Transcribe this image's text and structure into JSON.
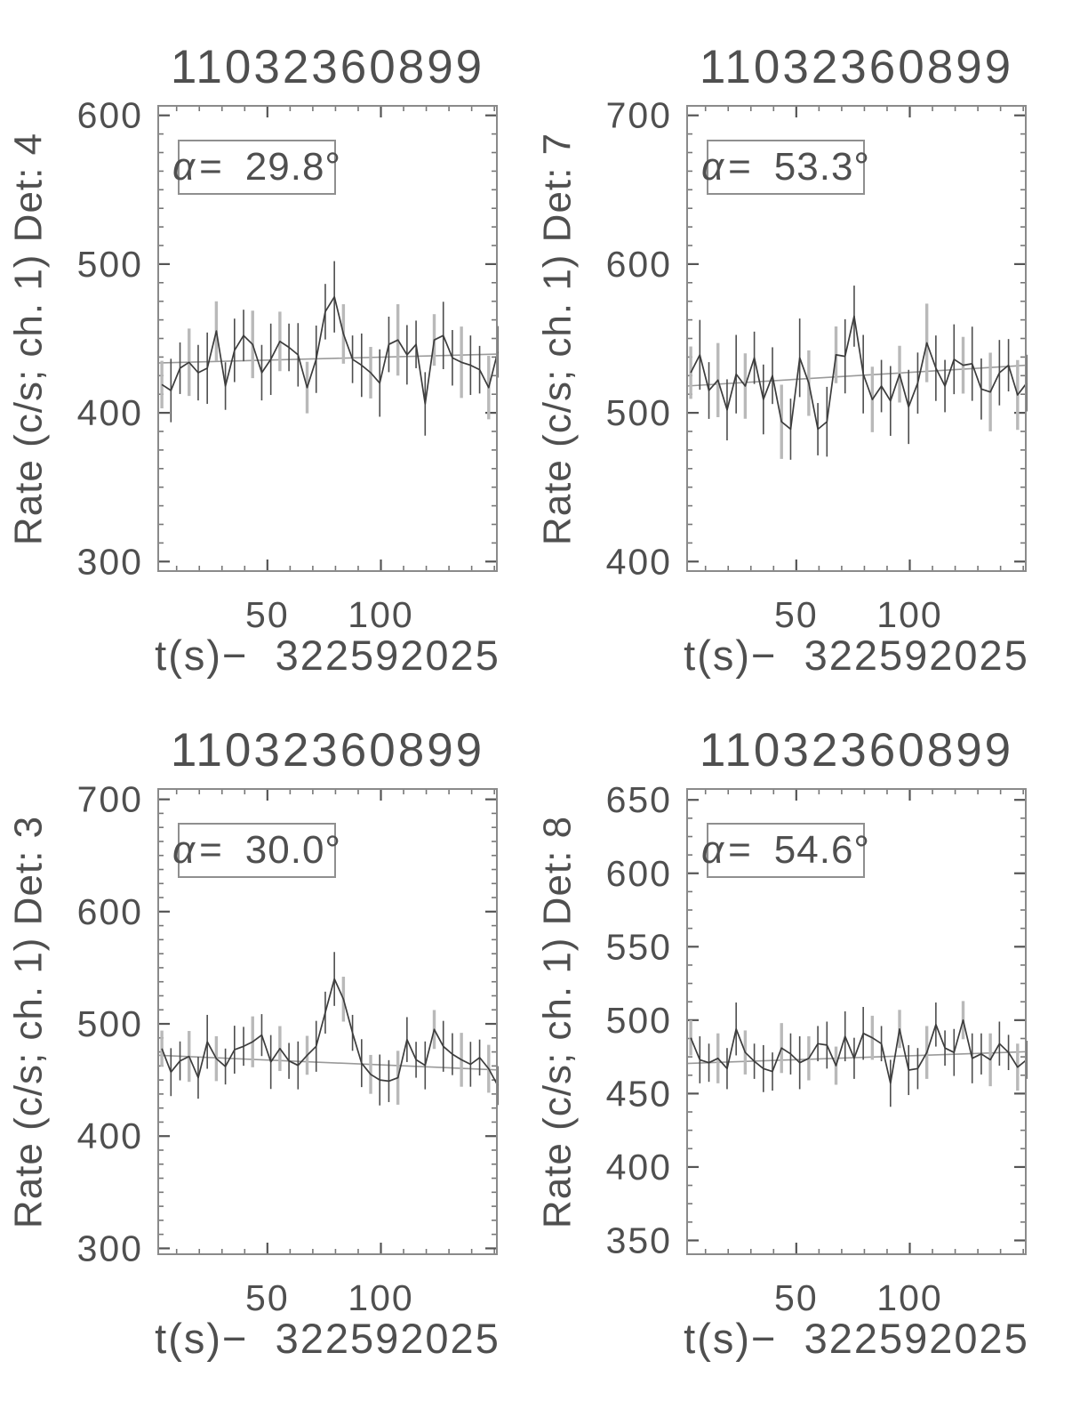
{
  "colors": {
    "background": "#ffffff",
    "text": "#4f4f4f",
    "frame": "#8a8a8a",
    "tick_major": "#555555",
    "tick_minor": "#777777",
    "data_line": "#3c3c3c",
    "trend_line": "#9a9a9a",
    "err_dark": "#4d4d4d",
    "err_gray": "#b9b9b9",
    "box_border": "#8f8f8f"
  },
  "chart_data": [
    {
      "type": "line",
      "title": "11032360899",
      "ylabel": "Rate (c/s; ch. 1) Det: 4",
      "xlabel": "t(s)−  322592025",
      "alpha_symbol": "α",
      "alpha_equals": "=",
      "alpha_value": "29.8°",
      "detector": "4",
      "xlim": [
        1.5,
        151.5
      ],
      "ylim": [
        293,
        607
      ],
      "xticks_major": [
        50,
        100
      ],
      "xtick_labels": [
        "50",
        "100"
      ],
      "xminor_step": 10,
      "yticks_major": [
        300,
        400,
        500,
        600
      ],
      "ytick_labels": [
        "300",
        "400",
        "500",
        "600"
      ],
      "yminor_step": 12.5,
      "x_start": 3.5,
      "x_step": 4,
      "values": [
        419,
        415,
        430,
        434,
        427,
        430,
        455,
        418,
        442,
        452,
        446,
        427,
        436,
        448,
        444,
        439,
        417,
        436,
        468,
        478,
        453,
        436,
        432,
        427,
        420,
        446,
        449,
        439,
        446,
        406,
        449,
        452,
        437,
        434,
        432,
        429,
        417,
        441
      ],
      "err": 20,
      "trend": [
        433.5,
        439.5
      ],
      "grid": "off",
      "legend": "none"
    },
    {
      "type": "line",
      "title": "11032360899",
      "ylabel": "Rate (c/s; ch. 1) Det: 7",
      "xlabel": "t(s)−  322592025",
      "alpha_symbol": "α",
      "alpha_equals": "=",
      "alpha_value": "53.3°",
      "detector": "7",
      "xlim": [
        1.5,
        151.5
      ],
      "ylim": [
        393,
        707
      ],
      "xticks_major": [
        50,
        100
      ],
      "xtick_labels": [
        "50",
        "100"
      ],
      "xminor_step": 10,
      "yticks_major": [
        400,
        500,
        600,
        700
      ],
      "ytick_labels": [
        "400",
        "500",
        "600",
        "700"
      ],
      "yminor_step": 12.5,
      "x_start": 3.5,
      "x_step": 4,
      "values": [
        527,
        539,
        515,
        522,
        502,
        526,
        518,
        537,
        509,
        525,
        494,
        489,
        537,
        520,
        489,
        494,
        539,
        538,
        565,
        526,
        509,
        518,
        508,
        526,
        504,
        520,
        547,
        530,
        518,
        536,
        532,
        533,
        516,
        514,
        527,
        532,
        512,
        520
      ],
      "err": 22,
      "trend": [
        518,
        532
      ],
      "grid": "off",
      "legend": "none"
    },
    {
      "type": "line",
      "title": "11032360899",
      "ylabel": "Rate (c/s; ch. 1) Det: 3",
      "xlabel": "t(s)−  322592025",
      "alpha_symbol": "α",
      "alpha_equals": "=",
      "alpha_value": "30.0°",
      "detector": "3",
      "xlim": [
        1.5,
        151.5
      ],
      "ylim": [
        294,
        710
      ],
      "xticks_major": [
        50,
        100
      ],
      "xtick_labels": [
        "50",
        "100"
      ],
      "xminor_step": 10,
      "yticks_major": [
        300,
        400,
        500,
        600,
        700
      ],
      "ytick_labels": [
        "300",
        "400",
        "500",
        "600",
        "700"
      ],
      "yminor_step": 12.5,
      "x_start": 3.5,
      "x_step": 4,
      "values": [
        478,
        457,
        467,
        471,
        452,
        484,
        469,
        462,
        477,
        480,
        484,
        490,
        466,
        478,
        467,
        463,
        472,
        480,
        510,
        540,
        522,
        492,
        465,
        455,
        450,
        449,
        452,
        486,
        468,
        463,
        495,
        480,
        473,
        468,
        464,
        470,
        460,
        445
      ],
      "err": 20,
      "trend": [
        472,
        459
      ],
      "grid": "off",
      "legend": "none"
    },
    {
      "type": "line",
      "title": "11032360899",
      "ylabel": "Rate (c/s; ch. 1) Det: 8",
      "xlabel": "t(s)−  322592025",
      "alpha_symbol": "α",
      "alpha_equals": "=",
      "alpha_value": "54.6°",
      "detector": "8",
      "xlim": [
        1.5,
        151.5
      ],
      "ylim": [
        340,
        658
      ],
      "xticks_major": [
        50,
        100
      ],
      "xtick_labels": [
        "50",
        "100"
      ],
      "xminor_step": 10,
      "yticks_major": [
        350,
        400,
        450,
        500,
        550,
        600,
        650
      ],
      "ytick_labels": [
        "350",
        "400",
        "450",
        "500",
        "550",
        "600",
        "650"
      ],
      "yminor_step": 12.5,
      "x_start": 3.5,
      "x_step": 4,
      "values": [
        488,
        473,
        471,
        474,
        467,
        494,
        478,
        472,
        467,
        465,
        481,
        477,
        471,
        474,
        484,
        483,
        469,
        489,
        474,
        491,
        488,
        484,
        457,
        494,
        466,
        467,
        478,
        497,
        481,
        478,
        500,
        474,
        477,
        473,
        484,
        478,
        468,
        473
      ],
      "err": 15,
      "trend": [
        470.5,
        478.5
      ],
      "grid": "off",
      "legend": "none"
    }
  ]
}
